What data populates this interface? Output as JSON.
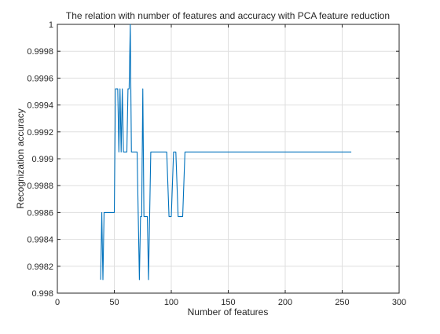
{
  "chart_data": {
    "type": "line",
    "title": "The relation with number of features and accuracy with PCA feature reduction",
    "xlabel": "Number of features",
    "ylabel": "Recognization accuracy",
    "xlim": [
      0,
      300
    ],
    "ylim": [
      0.998,
      1.0
    ],
    "x_ticks": [
      0,
      50,
      100,
      150,
      200,
      250,
      300
    ],
    "x_tick_labels": [
      "0",
      "50",
      "100",
      "150",
      "200",
      "250",
      "300"
    ],
    "y_ticks": [
      0.998,
      0.9982,
      0.9984,
      0.9986,
      0.9988,
      0.999,
      0.9992,
      0.9994,
      0.9996,
      0.9998,
      1.0
    ],
    "y_tick_labels": [
      "0.998",
      "0.9982",
      "0.9984",
      "0.9986",
      "0.9988",
      "0.999",
      "0.9992",
      "0.9994",
      "0.9996",
      "0.9998",
      "1"
    ],
    "grid": true,
    "line_color": "#0072bd",
    "series": [
      {
        "x": [
          38,
          39,
          40,
          41,
          42,
          43,
          45,
          48,
          50,
          51,
          52,
          53,
          54,
          55,
          56,
          57,
          58,
          59,
          60,
          61,
          62,
          63,
          64,
          65,
          66,
          67,
          68,
          70,
          72,
          73,
          74,
          75,
          76,
          77,
          78,
          79,
          80,
          82,
          84,
          86,
          88,
          90,
          92,
          94,
          96,
          98,
          100,
          102,
          104,
          106,
          108,
          110,
          112,
          114,
          120,
          150,
          200,
          258
        ],
        "y": [
          0.9981,
          0.9986,
          0.9981,
          0.9986,
          0.9986,
          0.9986,
          0.9986,
          0.9986,
          0.9986,
          0.99952,
          0.99952,
          0.99952,
          0.99905,
          0.99952,
          0.99905,
          0.99952,
          0.99905,
          0.99905,
          0.99905,
          0.99905,
          0.99952,
          0.99952,
          1.0,
          0.99905,
          0.99905,
          0.99905,
          0.99905,
          0.99905,
          0.9981,
          0.99857,
          0.99857,
          0.99952,
          0.99857,
          0.99857,
          0.99857,
          0.99857,
          0.9981,
          0.99905,
          0.99905,
          0.99905,
          0.99905,
          0.99905,
          0.99905,
          0.99905,
          0.99905,
          0.99857,
          0.99857,
          0.99905,
          0.99905,
          0.99857,
          0.99857,
          0.99857,
          0.99905,
          0.99905,
          0.99905,
          0.99905,
          0.99905,
          0.99905
        ]
      }
    ]
  }
}
